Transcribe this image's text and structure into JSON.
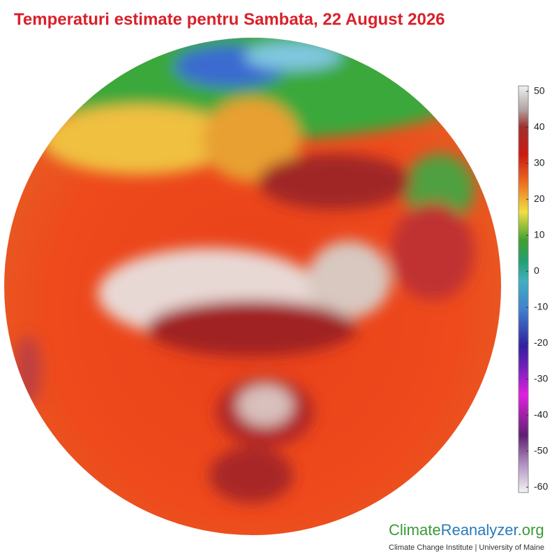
{
  "title": "Temperaturi estimate pentru Sambata, 22 August 2026",
  "colorbar": {
    "lim": [
      -61.5,
      51.5
    ],
    "ticks": [
      50,
      40,
      30,
      20,
      10,
      0,
      -10,
      -20,
      -30,
      -40,
      -50,
      -60
    ]
  },
  "branding": {
    "name_parts": [
      "Climate",
      "Reanalyzer",
      ".org"
    ],
    "subtitle": "Climate Change Institute | University of Maine"
  }
}
